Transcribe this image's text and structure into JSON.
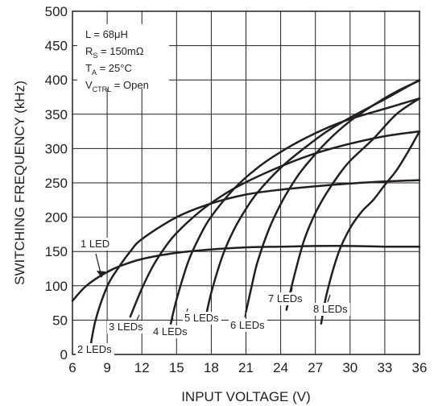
{
  "chart_data": {
    "type": "line",
    "xlabel": "INPUT VOLTAGE (V)",
    "ylabel": "SWITCHING FREQUENCY (kHz)",
    "xlim": [
      6,
      36
    ],
    "ylim": [
      0,
      500
    ],
    "xticks": [
      6,
      9,
      12,
      15,
      18,
      21,
      24,
      27,
      30,
      33,
      36
    ],
    "yticks": [
      0,
      50,
      100,
      150,
      200,
      250,
      300,
      350,
      400,
      450,
      500
    ],
    "grid": true,
    "conditions": [
      {
        "text": "L = 68μH"
      },
      {
        "main": "R",
        "sub": "S",
        "rest": " = 150mΩ"
      },
      {
        "main": "T",
        "sub": "A",
        "rest": " = 25°C"
      },
      {
        "main": "V",
        "sub": "CTRL",
        "rest": " = Open"
      }
    ],
    "series": [
      {
        "name": "1 LED",
        "x": [
          6,
          7,
          8,
          9,
          10,
          12,
          15,
          18,
          21,
          24,
          27,
          30,
          33,
          36
        ],
        "y": [
          78,
          97,
          110,
          120,
          128,
          139,
          148,
          153,
          156,
          157,
          158,
          158,
          157,
          157
        ]
      },
      {
        "name": "2 LEDs",
        "x": [
          7.5,
          8,
          9,
          10,
          11,
          12,
          15,
          18,
          21,
          24,
          27,
          30,
          33,
          36
        ],
        "y": [
          5,
          50,
          99,
          127,
          150,
          168,
          200,
          220,
          233,
          240,
          245,
          249,
          252,
          254
        ]
      },
      {
        "name": "3 LEDs",
        "x": [
          11,
          12,
          13,
          14,
          15,
          17,
          19,
          21,
          24,
          27,
          30,
          33,
          36
        ],
        "y": [
          55,
          96,
          130,
          156,
          177,
          208,
          232,
          251,
          274,
          293,
          307,
          318,
          325
        ]
      },
      {
        "name": "4 LEDs",
        "x": [
          14.5,
          15,
          16,
          17,
          18,
          20,
          22,
          24,
          26,
          28,
          30,
          33,
          36
        ],
        "y": [
          45,
          80,
          135,
          172,
          201,
          242,
          272,
          295,
          314,
          330,
          343,
          358,
          373
        ]
      },
      {
        "name": "5 LEDs",
        "x": [
          17.5,
          18,
          19,
          20,
          21,
          22,
          24,
          26,
          28,
          30,
          33,
          36
        ],
        "y": [
          52,
          90,
          145,
          183,
          212,
          236,
          272,
          300,
          325,
          345,
          372,
          400
        ]
      },
      {
        "name": "6 LEDs",
        "x": [
          21,
          21.5,
          22,
          23,
          24,
          25,
          26,
          28,
          30,
          32,
          34,
          36
        ],
        "y": [
          62,
          100,
          135,
          183,
          219,
          248,
          272,
          310,
          340,
          363,
          383,
          399
        ]
      },
      {
        "name": "7 LEDs",
        "x": [
          24.5,
          25,
          26,
          27,
          28,
          29,
          30,
          32,
          34,
          36
        ],
        "y": [
          65,
          103,
          165,
          206,
          236,
          261,
          282,
          314,
          350,
          373
        ]
      },
      {
        "name": "8 LEDs",
        "x": [
          27.5,
          28,
          29,
          30,
          31,
          32,
          33,
          34,
          35,
          36
        ],
        "y": [
          45,
          90,
          148,
          184,
          208,
          225,
          247,
          268,
          295,
          325
        ]
      }
    ]
  }
}
